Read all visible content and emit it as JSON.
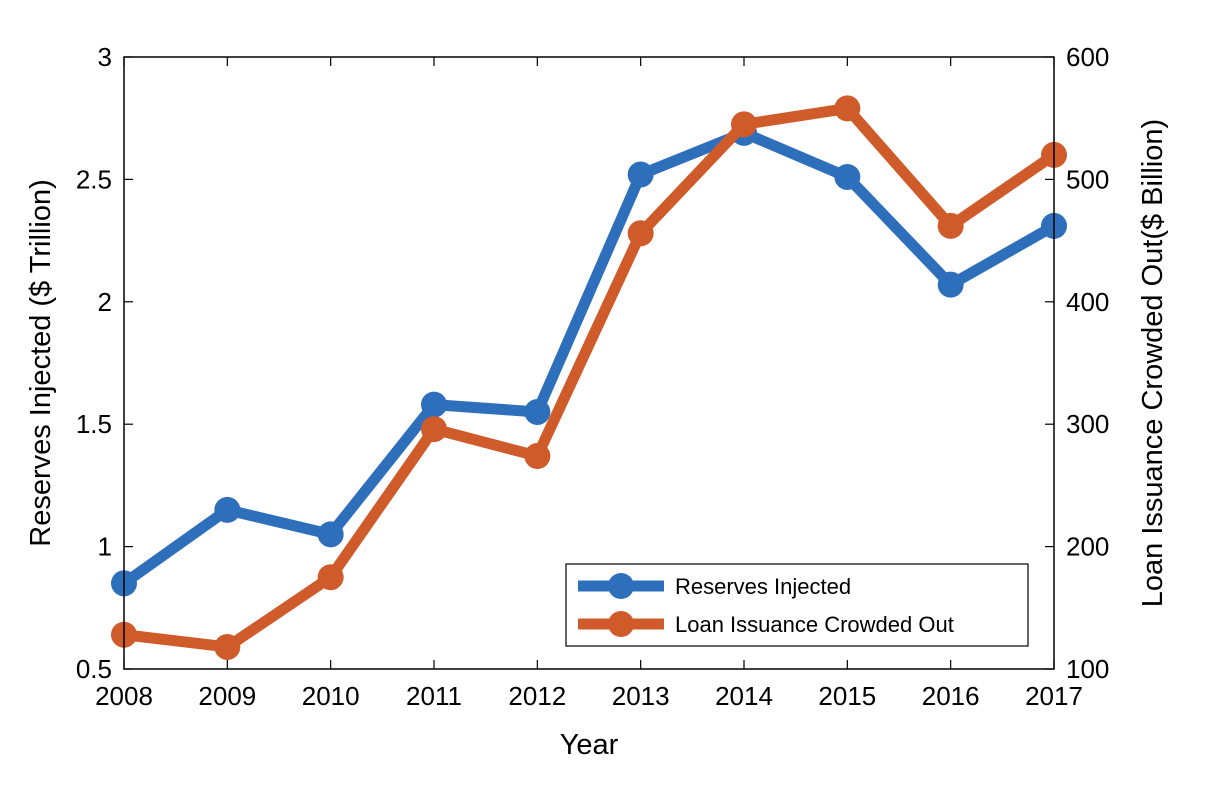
{
  "chart_data": {
    "type": "line",
    "xlabel": "Year",
    "ylabel_left": "Reserves Injected ($ Trillion)",
    "ylabel_right": "Loan Issuance Crowded Out($ Billion)",
    "x": [
      2008,
      2009,
      2010,
      2011,
      2012,
      2013,
      2014,
      2015,
      2016,
      2017
    ],
    "xlim": [
      2008,
      2017
    ],
    "ylim_left": [
      0.5,
      3
    ],
    "ylim_right": [
      100,
      600
    ],
    "yticks_left": [
      "0.5",
      "1",
      "1.5",
      "2",
      "2.5",
      "3"
    ],
    "yticks_right": [
      "100",
      "200",
      "300",
      "400",
      "500",
      "600"
    ],
    "grid": false,
    "legend_position": "lower-right",
    "series": [
      {
        "name": "Reserves Injected",
        "axis": "left",
        "color": "#2e6fbc",
        "values": [
          0.85,
          1.15,
          1.05,
          1.58,
          1.55,
          2.52,
          2.69,
          2.51,
          2.07,
          2.31
        ]
      },
      {
        "name": "Loan Issuance Crowded Out",
        "axis": "right",
        "color": "#cf5a2a",
        "values": [
          128,
          118,
          175,
          296,
          274,
          456,
          545,
          558,
          462,
          520
        ]
      }
    ]
  }
}
